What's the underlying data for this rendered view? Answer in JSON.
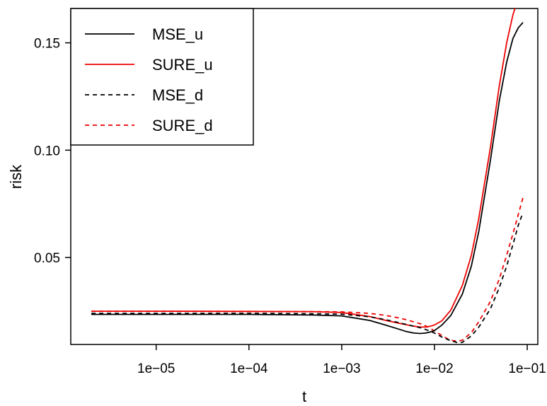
{
  "chart_data": {
    "type": "line",
    "xlabel": "t",
    "ylabel": "risk",
    "x_scale": "log",
    "xlim": [
      1.2e-06,
      0.13
    ],
    "ylim": [
      0.0095,
      0.166
    ],
    "x_ticks": [
      {
        "value": 1e-05,
        "label": "1e−05"
      },
      {
        "value": 0.0001,
        "label": "1e−04"
      },
      {
        "value": 0.001,
        "label": "1e−03"
      },
      {
        "value": 0.01,
        "label": "1e−02"
      },
      {
        "value": 0.1,
        "label": "1e−01"
      }
    ],
    "y_ticks": [
      {
        "value": 0.05,
        "label": "0.05"
      },
      {
        "value": 0.1,
        "label": "0.10"
      },
      {
        "value": 0.15,
        "label": "0.15"
      }
    ],
    "grid": false,
    "legend_position": "top-left",
    "series": [
      {
        "name": "MSE_u",
        "color": "#000000",
        "dash": "solid",
        "x": [
          2e-06,
          1e-05,
          0.0001,
          0.0005,
          0.001,
          0.002,
          0.003,
          0.004,
          0.005,
          0.006,
          0.007,
          0.008,
          0.009,
          0.01,
          0.012,
          0.015,
          0.02,
          0.025,
          0.03,
          0.04,
          0.05,
          0.06,
          0.07,
          0.08,
          0.09
        ],
        "y": [
          0.0235,
          0.0235,
          0.0235,
          0.0232,
          0.0228,
          0.0207,
          0.0185,
          0.0168,
          0.0155,
          0.0148,
          0.0146,
          0.0148,
          0.0153,
          0.016,
          0.0185,
          0.023,
          0.033,
          0.046,
          0.062,
          0.095,
          0.123,
          0.141,
          0.152,
          0.157,
          0.1595
        ]
      },
      {
        "name": "SURE_u",
        "color": "#ee0000",
        "dash": "solid",
        "x": [
          2e-06,
          1e-05,
          0.0001,
          0.0005,
          0.001,
          0.002,
          0.003,
          0.004,
          0.005,
          0.006,
          0.007,
          0.008,
          0.009,
          0.01,
          0.012,
          0.015,
          0.02,
          0.025,
          0.03,
          0.04,
          0.05,
          0.06,
          0.07,
          0.075
        ],
        "y": [
          0.025,
          0.025,
          0.0249,
          0.0248,
          0.0244,
          0.0225,
          0.0207,
          0.0195,
          0.0187,
          0.018,
          0.0176,
          0.0176,
          0.018,
          0.0186,
          0.0205,
          0.0255,
          0.037,
          0.051,
          0.068,
          0.101,
          0.13,
          0.15,
          0.163,
          0.167
        ]
      },
      {
        "name": "MSE_d",
        "color": "#000000",
        "dash": "dashed",
        "x": [
          2e-06,
          1e-05,
          0.0001,
          0.0005,
          0.001,
          0.002,
          0.003,
          0.004,
          0.005,
          0.006,
          0.007,
          0.008,
          0.009,
          0.01,
          0.012,
          0.015,
          0.018,
          0.02,
          0.025,
          0.03,
          0.04,
          0.05,
          0.06,
          0.07,
          0.08,
          0.09
        ],
        "y": [
          0.024,
          0.024,
          0.024,
          0.0238,
          0.0236,
          0.0224,
          0.021,
          0.0198,
          0.0188,
          0.018,
          0.0173,
          0.0165,
          0.0157,
          0.0148,
          0.013,
          0.0112,
          0.0103,
          0.0105,
          0.0135,
          0.0175,
          0.026,
          0.036,
          0.046,
          0.056,
          0.065,
          0.071
        ]
      },
      {
        "name": "SURE_d",
        "color": "#ee0000",
        "dash": "dashed",
        "x": [
          2e-06,
          1e-05,
          0.0001,
          0.0005,
          0.001,
          0.002,
          0.003,
          0.004,
          0.005,
          0.006,
          0.007,
          0.008,
          0.009,
          0.01,
          0.012,
          0.014,
          0.016,
          0.018,
          0.02,
          0.025,
          0.03,
          0.04,
          0.05,
          0.06,
          0.07,
          0.08,
          0.09
        ],
        "y": [
          0.025,
          0.025,
          0.0249,
          0.0248,
          0.0247,
          0.024,
          0.023,
          0.022,
          0.021,
          0.02,
          0.0192,
          0.0182,
          0.017,
          0.0158,
          0.0137,
          0.012,
          0.0112,
          0.011,
          0.0115,
          0.015,
          0.02,
          0.0295,
          0.04,
          0.051,
          0.061,
          0.07,
          0.078
        ]
      }
    ]
  }
}
